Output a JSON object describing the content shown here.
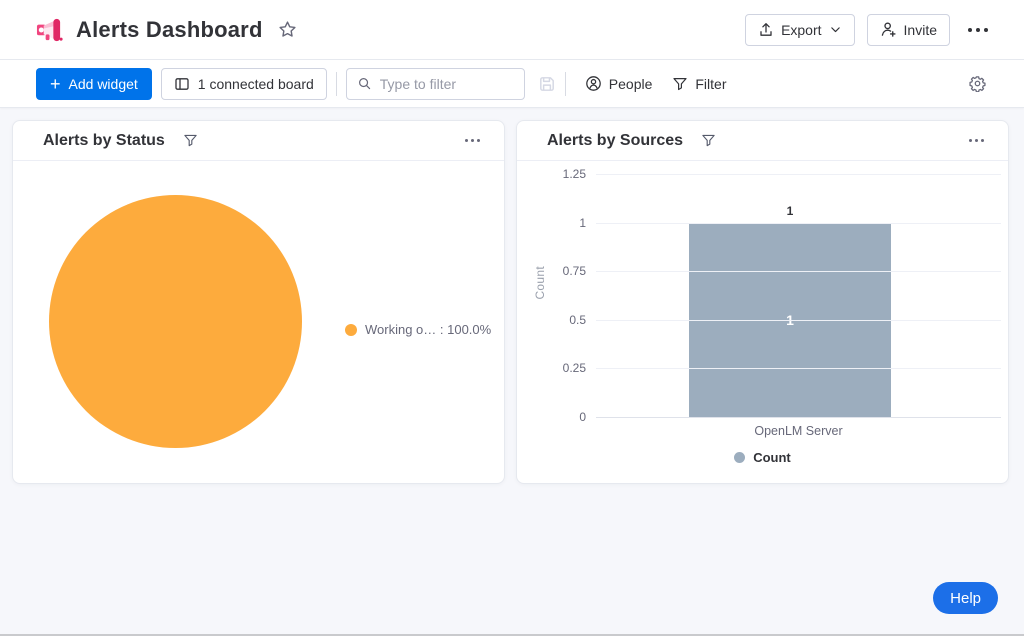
{
  "header": {
    "title": "Alerts Dashboard",
    "export_label": "Export",
    "invite_label": "Invite"
  },
  "toolbar": {
    "add_widget_label": "Add widget",
    "plus": "+",
    "connected_board_label": "1 connected board",
    "filter_input_placeholder": "Type to filter",
    "people_label": "People",
    "filter_label": "Filter"
  },
  "widgets": [
    {
      "title": "Alerts by Status"
    },
    {
      "title": "Alerts by Sources"
    }
  ],
  "help": {
    "label": "Help"
  },
  "colors": {
    "primary_blue": "#0073ea",
    "help_blue": "#1c6fe8",
    "pie_orange": "#fdab3d",
    "bar_slate": "#9cadbe"
  },
  "chart_data": [
    {
      "type": "pie",
      "title": "Alerts by Status",
      "labels": [
        "Working o…"
      ],
      "values": [
        100.0
      ],
      "unit": "%",
      "colors": [
        "#fdab3d"
      ],
      "legend": [
        {
          "label": "Working o… : 100.0%",
          "color": "#fdab3d"
        }
      ],
      "legend_position": "right"
    },
    {
      "type": "bar",
      "title": "Alerts by Sources",
      "categories": [
        "OpenLM Server"
      ],
      "series": [
        {
          "name": "Count",
          "values": [
            1
          ],
          "color": "#9cadbe"
        }
      ],
      "xlabel": "",
      "ylabel": "Count",
      "ylim": [
        0,
        1.25
      ],
      "yticks": [
        0,
        0.25,
        0.5,
        0.75,
        1,
        1.25
      ],
      "ytick_labels": [
        "0",
        "0.25",
        "0.5",
        "0.75",
        "1",
        "1.25"
      ],
      "grid": true,
      "bar_label_top": "1",
      "bar_label_inside": "1",
      "legend": [
        {
          "label": "Count",
          "color": "#9cadbe"
        }
      ],
      "legend_position": "bottom"
    }
  ]
}
